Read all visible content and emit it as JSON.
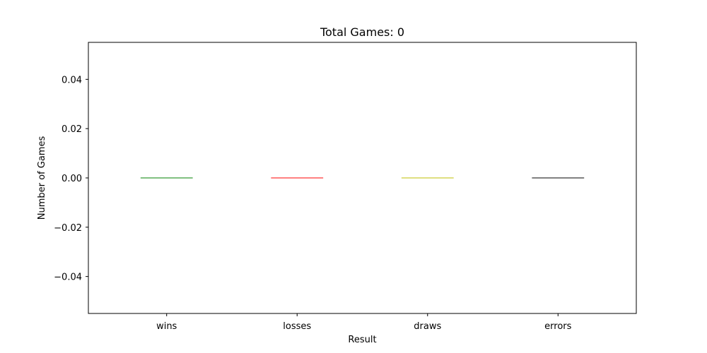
{
  "chart_data": {
    "type": "bar",
    "title": "Total Games: 0",
    "xlabel": "Result",
    "ylabel": "Number of Games",
    "categories": [
      "wins",
      "losses",
      "draws",
      "errors"
    ],
    "values": [
      0,
      0,
      0,
      0
    ],
    "colors": [
      "#008000",
      "#ff0000",
      "#bfbf00",
      "#000000"
    ],
    "ylim": [
      -0.055,
      0.055
    ],
    "yticks": [
      -0.04,
      -0.02,
      0.0,
      0.02,
      0.04
    ],
    "ytick_labels": [
      "−0.04",
      "−0.02",
      "0.00",
      "0.02",
      "0.04"
    ],
    "grid": false,
    "legend": "none"
  }
}
